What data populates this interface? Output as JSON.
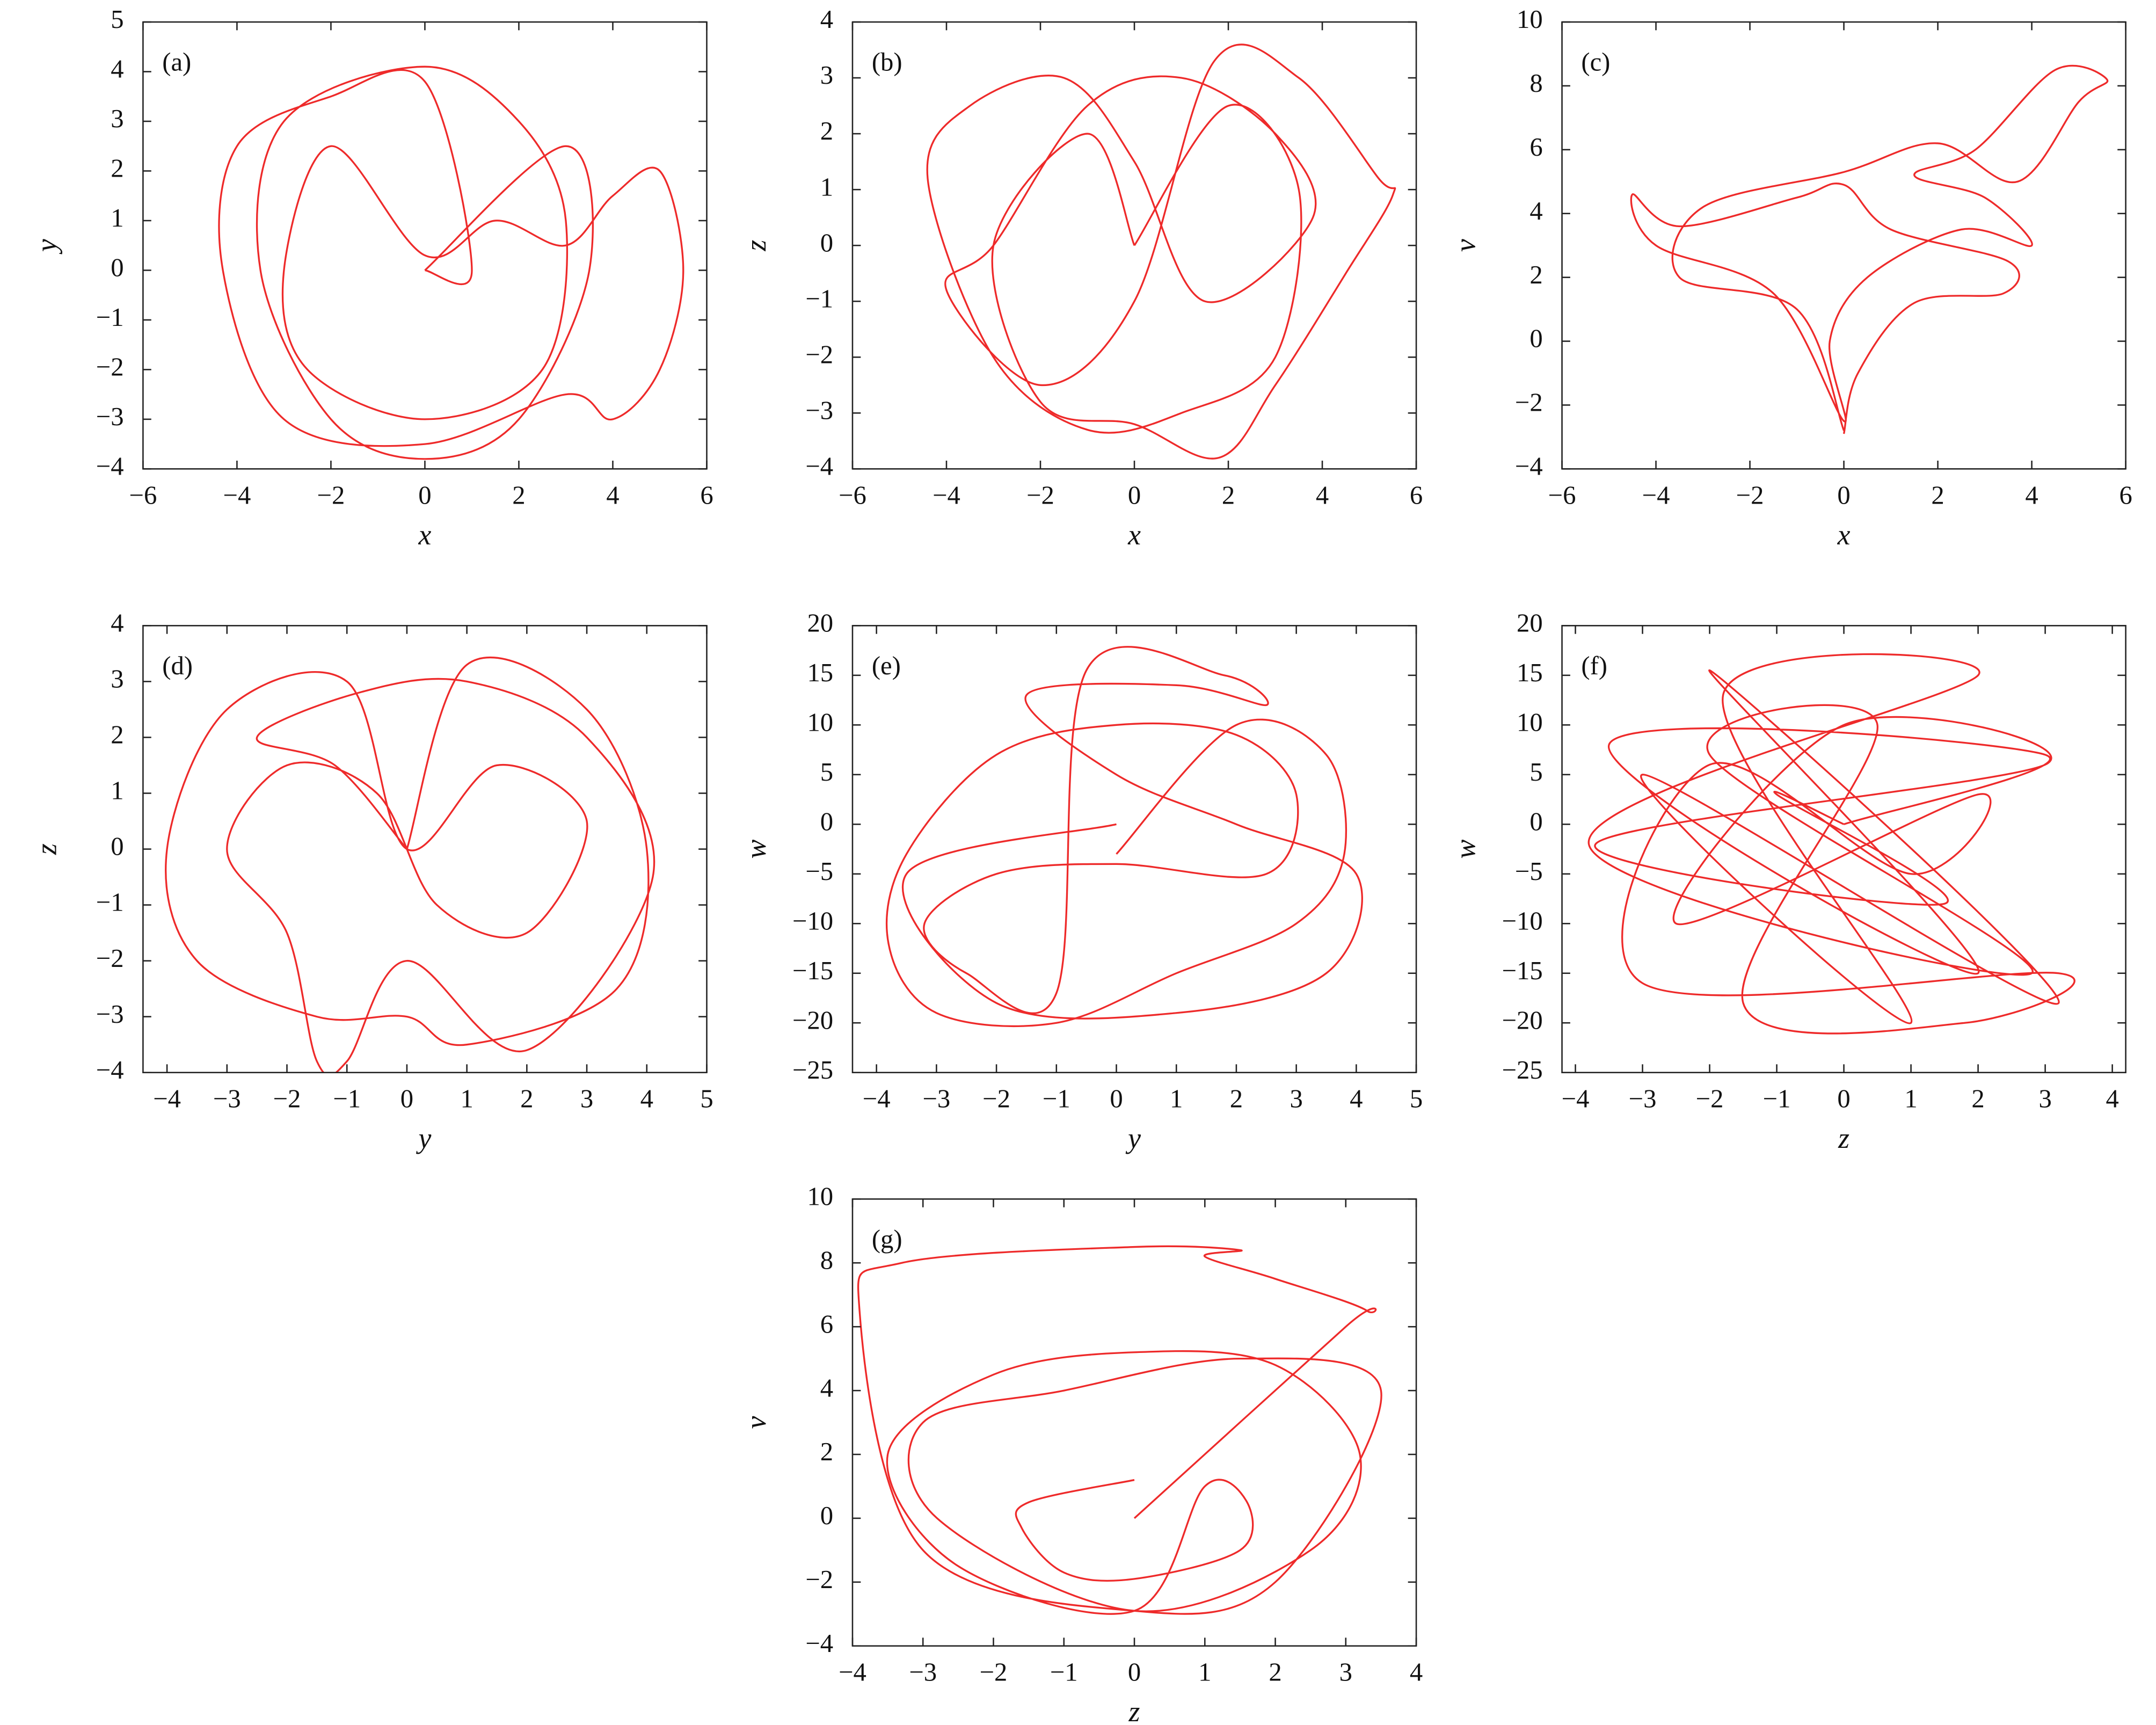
{
  "chart_data": [
    {
      "type": "line",
      "title": "(a)",
      "xlabel": "x",
      "ylabel": "y",
      "xlim": [
        -6,
        6
      ],
      "ylim": [
        -4,
        5
      ],
      "xticks": [
        {
          "value": -6,
          "label": "−6"
        },
        {
          "value": -4,
          "label": "−4"
        },
        {
          "value": -2,
          "label": "−2"
        },
        0,
        2,
        4,
        6
      ],
      "yticks": [
        {
          "value": -4,
          "label": "−4"
        },
        {
          "value": -3,
          "label": "−3"
        },
        {
          "value": -2,
          "label": "−2"
        },
        {
          "value": -1,
          "label": "−1"
        },
        0,
        1,
        2,
        3,
        4,
        5
      ],
      "x": [
        0,
        3,
        3.5,
        2,
        0,
        -2,
        -3.5,
        -3,
        0,
        2,
        3,
        2.5,
        0,
        -2.5,
        -3,
        -2,
        0,
        1.5,
        3,
        4,
        5,
        5.5,
        5,
        4,
        3,
        0,
        -3,
        -4.3,
        -4,
        -2,
        0,
        1,
        0
      ],
      "series": [
        {
          "color": "#ee2a2a",
          "values": [
            0,
            2.5,
            0,
            -3,
            -3.8,
            -3,
            0,
            3,
            4.1,
            3,
            1,
            -2,
            -3,
            -2,
            0,
            2.5,
            0.3,
            1,
            0.5,
            1.5,
            2,
            0,
            -2,
            -3,
            -2.5,
            -3.5,
            -3,
            0,
            2.5,
            3.5,
            3.8,
            0,
            0
          ]
        }
      ]
    },
    {
      "type": "line",
      "title": "(b)",
      "xlabel": "x",
      "ylabel": "z",
      "xlim": [
        -6,
        6
      ],
      "ylim": [
        -4,
        4
      ],
      "xticks": [
        {
          "value": -6,
          "label": "−6"
        },
        {
          "value": -4,
          "label": "−4"
        },
        {
          "value": -2,
          "label": "−2"
        },
        0,
        2,
        4,
        6
      ],
      "yticks": [
        {
          "value": -4,
          "label": "−4"
        },
        {
          "value": -3,
          "label": "−3"
        },
        {
          "value": -2,
          "label": "−2"
        },
        {
          "value": -1,
          "label": "−1"
        },
        0,
        1,
        2,
        3,
        4
      ],
      "x": [
        0,
        2,
        3.5,
        3,
        1,
        -1,
        -3,
        -4.4,
        -3.5,
        -1.5,
        0,
        1.5,
        3.8,
        3,
        1,
        -1,
        -3,
        -4,
        -2,
        0,
        1.7,
        3.5,
        5.2,
        5.5,
        4.5,
        3,
        1.8,
        0,
        -2,
        -3,
        -1,
        0
      ],
      "series": [
        {
          "color": "#ee2a2a",
          "values": [
            0,
            2.5,
            1,
            -2,
            -3,
            -3.3,
            -2,
            1.2,
            2.5,
            3,
            1.5,
            -1,
            0.5,
            2,
            3,
            2.5,
            0,
            -0.8,
            -2.5,
            -1,
            3.3,
            3,
            1.2,
            0.9,
            -0.5,
            -2.5,
            -3.8,
            -3.2,
            -2.8,
            0,
            2,
            0
          ]
        }
      ]
    },
    {
      "type": "line",
      "title": "(c)",
      "xlabel": "x",
      "ylabel": "v",
      "xlim": [
        -6,
        6
      ],
      "ylim": [
        -4,
        10
      ],
      "xticks": [
        {
          "value": -6,
          "label": "−6"
        },
        {
          "value": -4,
          "label": "−4"
        },
        {
          "value": -2,
          "label": "−2"
        },
        0,
        2,
        4,
        6
      ],
      "yticks": [
        {
          "value": -4,
          "label": "−4"
        },
        {
          "value": -2,
          "label": "−2"
        },
        0,
        2,
        4,
        6,
        8,
        10
      ],
      "x": [
        0,
        0.3,
        1.5,
        3.4,
        3.5,
        1,
        0,
        -1,
        -3.5,
        -4.5,
        -4,
        -1.5,
        0,
        -0.3,
        0.5,
        2.5,
        4,
        3,
        1.5,
        2.8,
        4.5,
        5.6,
        5,
        3.7,
        2,
        0,
        -3,
        -3.5,
        -1,
        0
      ],
      "series": [
        {
          "color": "#ee2a2a",
          "values": [
            -2.9,
            -1,
            1.2,
            1.5,
            2.5,
            3.5,
            4.9,
            4.5,
            3.6,
            4.6,
            3,
            1.5,
            -2.5,
            0,
            2,
            3.5,
            3,
            4.5,
            5.2,
            6,
            8.5,
            8.2,
            7.5,
            5,
            6.2,
            5.3,
            4.2,
            2,
            1,
            -2.8
          ]
        }
      ]
    },
    {
      "type": "line",
      "title": "(d)",
      "xlabel": "y",
      "ylabel": "z",
      "xlim": [
        -4.4,
        5
      ],
      "ylim": [
        -4,
        4
      ],
      "xticks": [
        {
          "value": -4,
          "label": "−4"
        },
        {
          "value": -3,
          "label": "−3"
        },
        {
          "value": -2,
          "label": "−2"
        },
        {
          "value": -1,
          "label": "−1"
        },
        0,
        1,
        2,
        3,
        4,
        5
      ],
      "yticks": [
        {
          "value": -4,
          "label": "−4"
        },
        {
          "value": -3,
          "label": "−3"
        },
        {
          "value": -2,
          "label": "−2"
        },
        {
          "value": -1,
          "label": "−1"
        },
        0,
        1,
        2,
        3,
        4
      ],
      "x": [
        0,
        1,
        3,
        4,
        3.5,
        1,
        0,
        -1.5,
        -3.5,
        -4,
        -3,
        -1,
        0,
        1.5,
        3,
        2,
        0.5,
        -0.5,
        -2,
        -3,
        -2,
        -1.5,
        -1,
        0,
        2,
        4.1,
        3,
        1,
        -0.8,
        -2.5,
        -1.2,
        0
      ],
      "series": [
        {
          "color": "#ee2a2a",
          "values": [
            0,
            3.3,
            2.5,
            0,
            -2.5,
            -3.5,
            -3,
            -3,
            -2,
            0,
            2.5,
            3,
            0,
            1.5,
            0.5,
            -1.5,
            -1,
            1,
            1.5,
            0,
            -1.5,
            -3.8,
            -3.8,
            -2,
            -3.6,
            -0.5,
            2,
            3,
            2.8,
            2,
            1.5,
            0
          ]
        }
      ]
    },
    {
      "type": "line",
      "title": "(e)",
      "xlabel": "y",
      "ylabel": "w",
      "xlim": [
        -4.4,
        5
      ],
      "ylim": [
        -25,
        20
      ],
      "xticks": [
        {
          "value": -4,
          "label": "−4"
        },
        {
          "value": -3,
          "label": "−3"
        },
        {
          "value": -2,
          "label": "−2"
        },
        {
          "value": -1,
          "label": "−1"
        },
        0,
        1,
        2,
        3,
        4,
        5
      ],
      "yticks": [
        {
          "value": -25,
          "label": "−25"
        },
        {
          "value": -20,
          "label": "−20"
        },
        {
          "value": -15,
          "label": "−15"
        },
        {
          "value": -10,
          "label": "−10"
        },
        {
          "value": -5,
          "label": "−5"
        },
        0,
        5,
        10,
        15,
        20
      ],
      "x": [
        0,
        2,
        3.5,
        3.8,
        3,
        1,
        -1,
        -3,
        -3.8,
        -3.5,
        -2,
        0,
        2,
        3,
        2.5,
        0,
        -2,
        -3.2,
        -2.5,
        -1,
        -0.5,
        1.8,
        2.5,
        1,
        -1.5,
        0,
        2,
        4,
        3.5,
        1,
        -2,
        -3.5,
        0
      ],
      "series": [
        {
          "color": "#ee2a2a",
          "values": [
            -3,
            10,
            7,
            -3,
            -10,
            -15,
            -20,
            -19,
            -12,
            -3,
            7,
            10,
            9,
            3,
            -5,
            -4,
            -5,
            -10,
            -15,
            -17,
            15.5,
            15,
            12,
            14,
            13,
            5,
            0,
            -5,
            -15,
            -19,
            -18,
            -5,
            0
          ]
        }
      ]
    },
    {
      "type": "line",
      "title": "(f)",
      "xlabel": "z",
      "ylabel": "w",
      "xlim": [
        -4.2,
        4.2
      ],
      "ylim": [
        -25,
        20
      ],
      "xticks": [
        {
          "value": -4,
          "label": "−4"
        },
        {
          "value": -3,
          "label": "−3"
        },
        {
          "value": -2,
          "label": "−2"
        },
        {
          "value": -1,
          "label": "−1"
        },
        0,
        1,
        2,
        3,
        4
      ],
      "yticks": [
        {
          "value": -25,
          "label": "−25"
        },
        {
          "value": -20,
          "label": "−20"
        },
        {
          "value": -15,
          "label": "−15"
        },
        {
          "value": -10,
          "label": "−10"
        },
        {
          "value": -5,
          "label": "−5"
        },
        0,
        5,
        10,
        15,
        20
      ],
      "x": [
        0,
        3,
        -3.5,
        2,
        -2,
        3.2,
        -3,
        1,
        -1.8,
        2,
        -3.8,
        2.8,
        -2,
        0.5,
        -1.5,
        1.8,
        3.2,
        -3,
        -2,
        1,
        2,
        -2.5,
        0,
        3,
        -3.7,
        1.5,
        -1,
        0
      ],
      "series": [
        {
          "color": "#ee2a2a",
          "values": [
            0,
            7,
            8,
            -15,
            15.5,
            -18,
            5,
            -20,
            13,
            15,
            -2,
            -15,
            7,
            10,
            -18,
            -20,
            -15,
            -16,
            6,
            -5,
            3,
            -10,
            10,
            6,
            -2,
            -8,
            3,
            0
          ]
        }
      ]
    },
    {
      "type": "line",
      "title": "(g)",
      "xlabel": "z",
      "ylabel": "v",
      "xlim": [
        -4,
        4
      ],
      "ylim": [
        -4,
        10
      ],
      "xticks": [
        {
          "value": -4,
          "label": "−4"
        },
        {
          "value": -3,
          "label": "−3"
        },
        {
          "value": -2,
          "label": "−2"
        },
        {
          "value": -1,
          "label": "−1"
        },
        0,
        1,
        2,
        3,
        4
      ],
      "yticks": [
        {
          "value": -4,
          "label": "−4"
        },
        {
          "value": -2,
          "label": "−2"
        },
        0,
        2,
        4,
        6,
        8,
        10
      ],
      "x": [
        0,
        -1.5,
        -1.6,
        -1,
        0,
        1.5,
        1.6,
        1,
        0,
        -2.5,
        -3.5,
        -2,
        0,
        2,
        3.2,
        2.5,
        0,
        -2.8,
        -3,
        -1,
        1.5,
        3.5,
        2,
        0,
        -3,
        -3.9,
        -3.3,
        0,
        1.5,
        1,
        2,
        3.3,
        3,
        0
      ],
      "series": [
        {
          "color": "#ee2a2a",
          "values": [
            1.2,
            0.5,
            -0.3,
            -1.7,
            -1.9,
            -1,
            0.5,
            1,
            -2.9,
            -1.5,
            2,
            4.5,
            5.2,
            4.8,
            2,
            -1,
            -2.9,
            0,
            3,
            4,
            5,
            4,
            -2,
            -2.9,
            -1,
            6.5,
            8,
            8.5,
            8.4,
            8.2,
            7.5,
            6.5,
            6,
            0
          ]
        }
      ]
    }
  ]
}
